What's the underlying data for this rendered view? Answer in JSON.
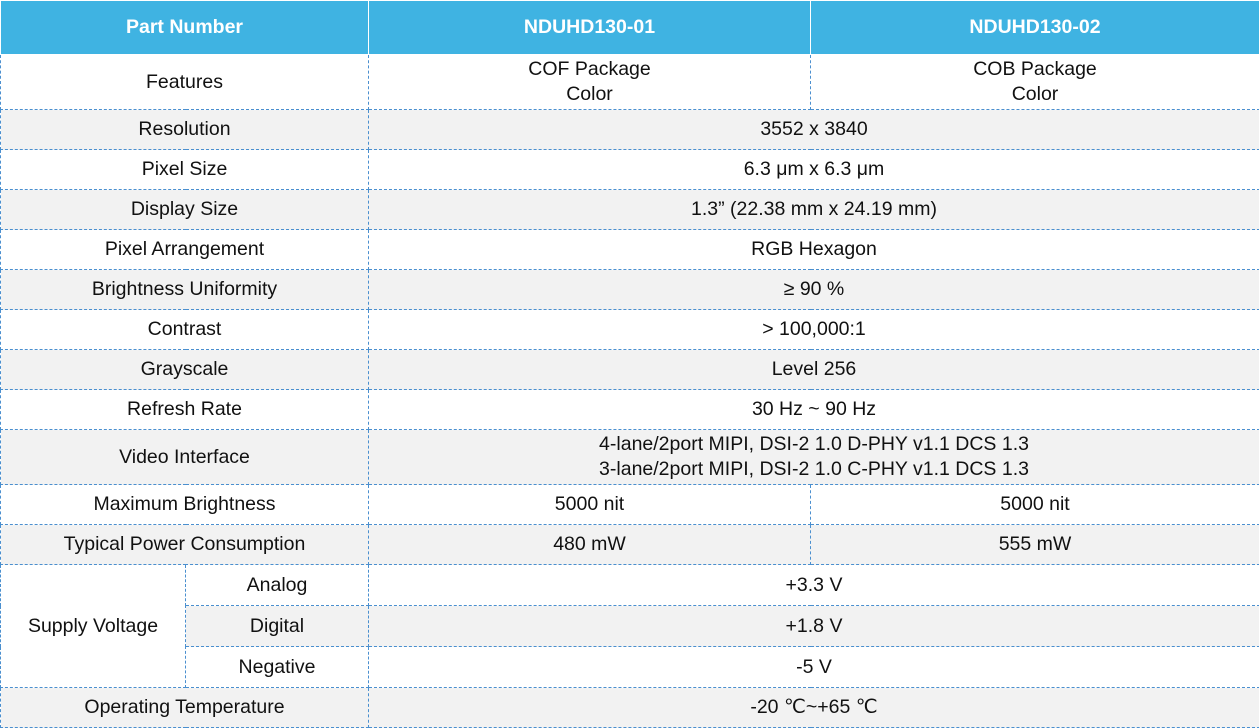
{
  "table": {
    "header": [
      "Part Number",
      "NDUHD130-01",
      "NDUHD130-02"
    ],
    "rows": [
      [
        "Features",
        "COF Package\nColor",
        "COB Package\nColor"
      ],
      [
        "Resolution",
        "3552 x 3840"
      ],
      [
        "Pixel Size",
        "6.3 μm x 6.3 μm"
      ],
      [
        "Display Size",
        "1.3”  (22.38 mm x 24.19 mm)"
      ],
      [
        "Pixel Arrangement",
        "RGB Hexagon"
      ],
      [
        "Brightness Uniformity",
        "≥ 90 %"
      ],
      [
        "Contrast",
        "> 100,000:1"
      ],
      [
        "Grayscale",
        "Level 256"
      ],
      [
        "Refresh Rate",
        "30 Hz ~ 90 Hz"
      ],
      [
        "Video Interface",
        "4-lane/2port MIPI, DSI-2 1.0 D-PHY v1.1 DCS 1.3\n3-lane/2port MIPI, DSI-2 1.0 C-PHY v1.1 DCS 1.3"
      ],
      [
        "Maximum Brightness",
        "5000 nit",
        "5000 nit"
      ],
      [
        "Typical Power Consumption",
        "480 mW",
        "555 mW"
      ],
      {
        "group": "Supply Voltage",
        "rows": [
          [
            "Analog",
            "+3.3 V"
          ],
          [
            "Digital",
            "+1.8 V"
          ],
          [
            "Negative",
            "-5 V"
          ]
        ]
      },
      [
        "Operating Temperature",
        "-20 ℃~+65 ℃"
      ]
    ]
  }
}
